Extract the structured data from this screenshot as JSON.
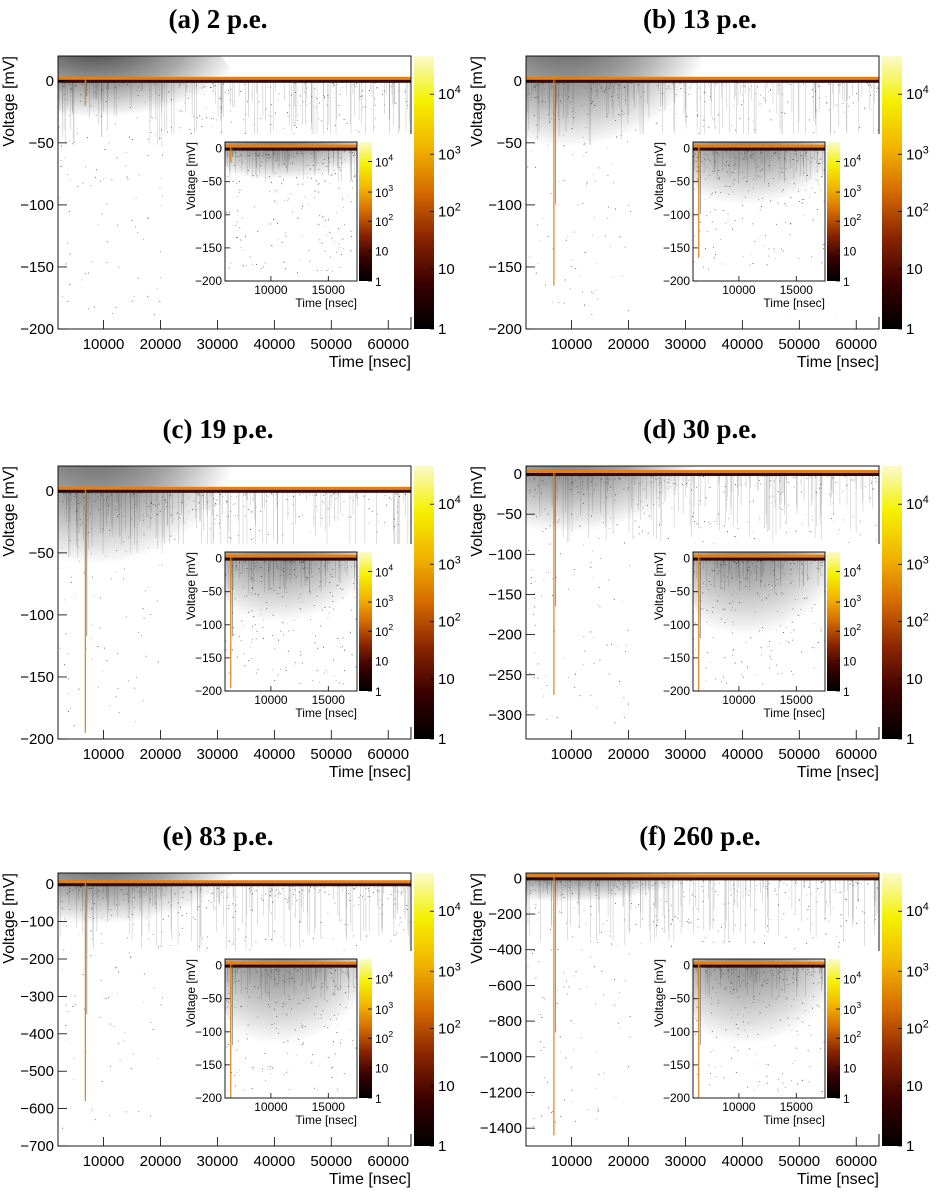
{
  "chart_data": [
    {
      "type": "heatmap",
      "title": "(a) 2 p.e.",
      "xlabel": "Time [nsec]",
      "ylabel": "Voltage [mV]",
      "xlim": [
        2000,
        64000
      ],
      "ylim": [
        -200,
        20
      ],
      "x_ticks": [
        "10000",
        "20000",
        "30000",
        "40000",
        "50000",
        "60000"
      ],
      "x_tick_values": [
        10000,
        20000,
        30000,
        40000,
        50000,
        60000
      ],
      "y_ticks": [
        "0",
        "−50",
        "−100",
        "−150",
        "−200"
      ],
      "y_tick_values": [
        0,
        -50,
        -100,
        -150,
        -200
      ],
      "colorbar_ticks": [
        "1",
        "10",
        "10^2",
        "10^3",
        "10^4"
      ],
      "pulse_time_nsec": 6800,
      "pulse_min_mv": -20,
      "hump_center_nsec": 9500,
      "hump_depth_mv": -22,
      "inset": {
        "xlabel": "Time [nsec]",
        "ylabel": "Voltage [mV]",
        "xlim": [
          6000,
          17500
        ],
        "ylim": [
          -200,
          10
        ],
        "x_ticks": [
          "10000",
          "15000"
        ],
        "x_tick_values": [
          10000,
          15000
        ],
        "y_ticks": [
          "0",
          "−50",
          "−100",
          "−150",
          "−200"
        ],
        "y_tick_values": [
          0,
          -50,
          -100,
          -150,
          -200
        ],
        "colorbar_ticks": [
          "1",
          "10",
          "10^2",
          "10^3",
          "10^4"
        ]
      }
    },
    {
      "type": "heatmap",
      "title": "(b) 13 p.e.",
      "xlabel": "Time [nsec]",
      "ylabel": "Voltage [mV]",
      "xlim": [
        2000,
        64000
      ],
      "ylim": [
        -200,
        20
      ],
      "x_ticks": [
        "10000",
        "20000",
        "30000",
        "40000",
        "50000",
        "60000"
      ],
      "x_tick_values": [
        10000,
        20000,
        30000,
        40000,
        50000,
        60000
      ],
      "y_ticks": [
        "0",
        "−50",
        "−100",
        "−150",
        "−200"
      ],
      "y_tick_values": [
        0,
        -50,
        -100,
        -150,
        -200
      ],
      "colorbar_ticks": [
        "1",
        "10",
        "10^2",
        "10^3",
        "10^4"
      ],
      "pulse_time_nsec": 6900,
      "pulse_min_mv": -165,
      "hump_center_nsec": 10000,
      "hump_depth_mv": -40,
      "inset": {
        "xlabel": "Time [nsec]",
        "ylabel": "Voltage [mV]",
        "xlim": [
          6000,
          17500
        ],
        "ylim": [
          -200,
          10
        ],
        "x_ticks": [
          "10000",
          "15000"
        ],
        "x_tick_values": [
          10000,
          15000
        ],
        "y_ticks": [
          "0",
          "−50",
          "−100",
          "−150",
          "−200"
        ],
        "y_tick_values": [
          0,
          -50,
          -100,
          -150,
          -200
        ],
        "colorbar_ticks": [
          "1",
          "10",
          "10^2",
          "10^3",
          "10^4"
        ]
      }
    },
    {
      "type": "heatmap",
      "title": "(c) 19 p.e.",
      "xlabel": "Time [nsec]",
      "ylabel": "Voltage [mV]",
      "xlim": [
        2000,
        64000
      ],
      "ylim": [
        -200,
        20
      ],
      "x_ticks": [
        "10000",
        "20000",
        "30000",
        "40000",
        "50000",
        "60000"
      ],
      "x_tick_values": [
        10000,
        20000,
        30000,
        40000,
        50000,
        60000
      ],
      "y_ticks": [
        "0",
        "−50",
        "−100",
        "−150",
        "−200"
      ],
      "y_tick_values": [
        0,
        -50,
        -100,
        -150,
        -200
      ],
      "colorbar_ticks": [
        "1",
        "10",
        "10^2",
        "10^3",
        "10^4"
      ],
      "pulse_time_nsec": 6800,
      "pulse_min_mv": -195,
      "hump_center_nsec": 9500,
      "hump_depth_mv": -45,
      "inset": {
        "xlabel": "Time [nsec]",
        "ylabel": "Voltage [mV]",
        "xlim": [
          6000,
          17500
        ],
        "ylim": [
          -200,
          10
        ],
        "x_ticks": [
          "10000",
          "15000"
        ],
        "x_tick_values": [
          10000,
          15000
        ],
        "y_ticks": [
          "0",
          "−50",
          "−100",
          "−150",
          "−200"
        ],
        "y_tick_values": [
          0,
          -50,
          -100,
          -150,
          -200
        ],
        "colorbar_ticks": [
          "1",
          "10",
          "10^2",
          "10^3",
          "10^4"
        ]
      }
    },
    {
      "type": "heatmap",
      "title": "(d) 30 p.e.",
      "xlabel": "Time [nsec]",
      "ylabel": "Voltage [mV]",
      "xlim": [
        2000,
        64000
      ],
      "ylim": [
        -330,
        10
      ],
      "x_ticks": [
        "10000",
        "20000",
        "30000",
        "40000",
        "50000",
        "60000"
      ],
      "x_tick_values": [
        10000,
        20000,
        30000,
        40000,
        50000,
        60000
      ],
      "y_ticks": [
        "0",
        "−50",
        "−100",
        "−150",
        "−200",
        "−250",
        "−300"
      ],
      "y_tick_values": [
        0,
        -50,
        -100,
        -150,
        -200,
        -250,
        -300
      ],
      "colorbar_ticks": [
        "1",
        "10",
        "10^2",
        "10^3",
        "10^4"
      ],
      "pulse_time_nsec": 6900,
      "pulse_min_mv": -275,
      "hump_center_nsec": 10000,
      "hump_depth_mv": -55,
      "inset": {
        "xlabel": "Time [nsec]",
        "ylabel": "Voltage [mV]",
        "xlim": [
          6000,
          17500
        ],
        "ylim": [
          -200,
          10
        ],
        "x_ticks": [
          "10000",
          "15000"
        ],
        "x_tick_values": [
          10000,
          15000
        ],
        "y_ticks": [
          "0",
          "−50",
          "−100",
          "−150",
          "−200"
        ],
        "y_tick_values": [
          0,
          -50,
          -100,
          -150,
          -200
        ],
        "colorbar_ticks": [
          "1",
          "10",
          "10^2",
          "10^3",
          "10^4"
        ]
      }
    },
    {
      "type": "heatmap",
      "title": "(e) 83 p.e.",
      "xlabel": "Time [nsec]",
      "ylabel": "Voltage [mV]",
      "xlim": [
        2000,
        64000
      ],
      "ylim": [
        -700,
        30
      ],
      "x_ticks": [
        "10000",
        "20000",
        "30000",
        "40000",
        "50000",
        "60000"
      ],
      "x_tick_values": [
        10000,
        20000,
        30000,
        40000,
        50000,
        60000
      ],
      "y_ticks": [
        "0",
        "−100",
        "−200",
        "−300",
        "−400",
        "−500",
        "−600",
        "−700"
      ],
      "y_tick_values": [
        0,
        -100,
        -200,
        -300,
        -400,
        -500,
        -600,
        -700
      ],
      "colorbar_ticks": [
        "1",
        "10",
        "10^2",
        "10^3",
        "10^4"
      ],
      "pulse_time_nsec": 6800,
      "pulse_min_mv": -580,
      "hump_center_nsec": 10000,
      "hump_depth_mv": -80,
      "inset": {
        "xlabel": "Time [nsec]",
        "ylabel": "Voltage [mV]",
        "xlim": [
          6000,
          17500
        ],
        "ylim": [
          -200,
          10
        ],
        "x_ticks": [
          "10000",
          "15000"
        ],
        "x_tick_values": [
          10000,
          15000
        ],
        "y_ticks": [
          "0",
          "−50",
          "−100",
          "−150",
          "−200"
        ],
        "y_tick_values": [
          0,
          -50,
          -100,
          -150,
          -200
        ],
        "colorbar_ticks": [
          "1",
          "10",
          "10^2",
          "10^3",
          "10^4"
        ]
      }
    },
    {
      "type": "heatmap",
      "title": "(f) 260 p.e.",
      "xlabel": "Time [nsec]",
      "ylabel": "Voltage [mV]",
      "xlim": [
        2000,
        64000
      ],
      "ylim": [
        -1500,
        30
      ],
      "x_ticks": [
        "10000",
        "20000",
        "30000",
        "40000",
        "50000",
        "60000"
      ],
      "x_tick_values": [
        10000,
        20000,
        30000,
        40000,
        50000,
        60000
      ],
      "y_ticks": [
        "0",
        "−200",
        "−400",
        "−600",
        "−800",
        "−1000",
        "−1200",
        "−1400"
      ],
      "y_tick_values": [
        0,
        -200,
        -400,
        -600,
        -800,
        -1000,
        -1200,
        -1400
      ],
      "colorbar_ticks": [
        "1",
        "10",
        "10^2",
        "10^3",
        "10^4"
      ],
      "pulse_time_nsec": 6900,
      "pulse_min_mv": -1440,
      "hump_center_nsec": 10000,
      "hump_depth_mv": -100,
      "inset": {
        "xlabel": "Time [nsec]",
        "ylabel": "Voltage [mV]",
        "xlim": [
          6000,
          17500
        ],
        "ylim": [
          -200,
          10
        ],
        "x_ticks": [
          "10000",
          "15000"
        ],
        "x_tick_values": [
          10000,
          15000
        ],
        "y_ticks": [
          "0",
          "−50",
          "−100",
          "−150",
          "−200"
        ],
        "y_tick_values": [
          0,
          -50,
          -100,
          -150,
          -200
        ],
        "colorbar_ticks": [
          "1",
          "10",
          "10^2",
          "10^3",
          "10^4"
        ]
      }
    }
  ],
  "colors": {
    "colorbar_stops": [
      "#000000",
      "#3a0000",
      "#8a2400",
      "#d46a00",
      "#f2b400",
      "#f4f000",
      "#fafad0"
    ],
    "baseline": "#e0801a"
  }
}
